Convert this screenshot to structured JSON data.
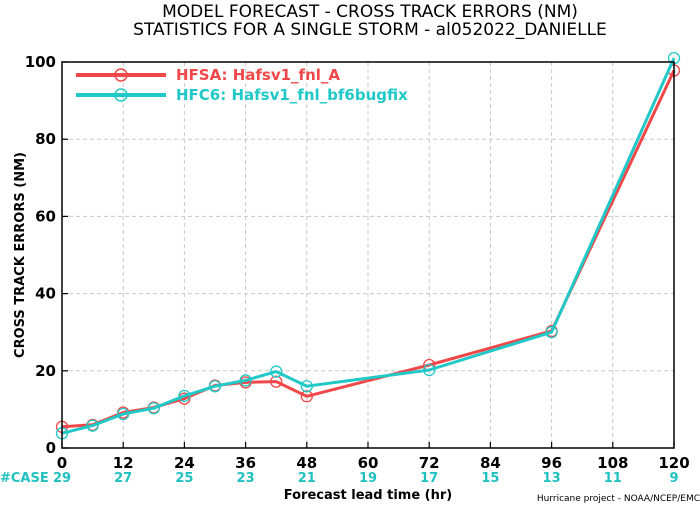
{
  "chart_data": {
    "type": "line",
    "title_line1": "MODEL FORECAST - CROSS TRACK ERRORS (NM)",
    "title_line2": "STATISTICS FOR A SINGLE STORM - al052022_DANIELLE",
    "xlabel": "Forecast lead time (hr)",
    "ylabel": "CROSS TRACK ERRORS (NM)",
    "xlim": [
      0,
      120
    ],
    "ylim": [
      0,
      100
    ],
    "x_ticks": [
      0,
      12,
      24,
      36,
      48,
      60,
      72,
      84,
      96,
      108,
      120
    ],
    "y_ticks": [
      0,
      20,
      40,
      60,
      80,
      100
    ],
    "grid": true,
    "legend_position": "top-left",
    "series": [
      {
        "name": "HFSA: Hafsv1_fnl_A",
        "color": "#f04848",
        "x": [
          0,
          6,
          12,
          18,
          24,
          30,
          36,
          42,
          48,
          72,
          96,
          120
        ],
        "values": [
          5.5,
          6.0,
          9.2,
          10.5,
          12.8,
          16.2,
          17.0,
          17.2,
          13.4,
          21.5,
          30.3,
          97.8
        ]
      },
      {
        "name": "HFC6: Hafsv1_fnl_bf6bugfix",
        "color": "#20c8c8",
        "x": [
          0,
          6,
          12,
          18,
          24,
          30,
          36,
          42,
          48,
          72,
          96,
          120
        ],
        "values": [
          3.8,
          5.8,
          8.8,
          10.3,
          13.5,
          16.0,
          17.5,
          19.8,
          16.0,
          20.2,
          30.0,
          101.0
        ]
      }
    ],
    "case_label": "#CASE",
    "case_x": [
      0,
      12,
      24,
      36,
      48,
      60,
      72,
      84,
      96,
      108,
      120
    ],
    "case_counts": [
      "29",
      "27",
      "25",
      "23",
      "21",
      "19",
      "17",
      "15",
      "13",
      "11",
      "9"
    ],
    "credit": "Hurricane project - NOAA/NCEP/EMC"
  }
}
